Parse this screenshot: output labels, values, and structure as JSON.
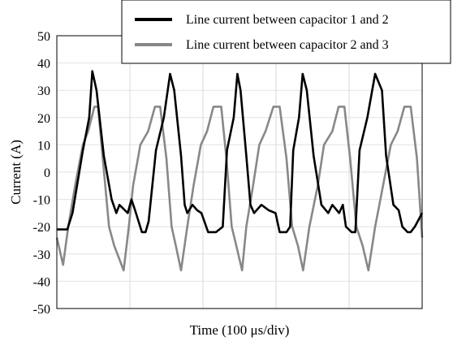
{
  "chart_data": {
    "type": "line",
    "title": "",
    "xlabel": "Time (100 μs/div)",
    "ylabel": "Current (A)",
    "ylim": [
      -50,
      50
    ],
    "yticks": [
      50,
      40,
      30,
      20,
      10,
      0,
      -10,
      -20,
      -30,
      -40,
      -50
    ],
    "xlim": [
      0,
      7
    ],
    "grid": true,
    "legend_position": "top-right",
    "series": [
      {
        "name": "Line current between capacitor 1 and 2",
        "color": "#000000",
        "x": [
          0,
          0.2,
          0.3,
          0.5,
          0.62,
          0.68,
          0.76,
          0.9,
          1.05,
          1.14,
          1.2,
          1.36,
          1.43,
          1.5,
          1.63,
          1.7,
          1.76,
          1.9,
          2.05,
          2.17,
          2.25,
          2.38,
          2.45,
          2.5,
          2.6,
          2.69,
          2.77,
          2.9,
          3.05,
          3.18,
          3.26,
          3.39,
          3.46,
          3.52,
          3.63,
          3.71,
          3.78,
          3.92,
          4.06,
          4.19,
          4.27,
          4.4,
          4.47,
          4.53,
          4.64,
          4.71,
          4.79,
          4.92,
          5.07,
          5.2,
          5.28,
          5.41,
          5.48,
          5.54,
          5.65,
          5.72,
          5.8,
          5.95,
          6.1,
          6.23,
          6.31,
          6.45,
          6.55,
          6.62,
          6.72,
          6.78,
          6.86,
          7
        ],
        "y": [
          -21,
          -21,
          -15,
          8,
          20,
          37,
          30,
          6,
          -10,
          -15,
          -12,
          -15,
          -10,
          -14,
          -22,
          -22,
          -18,
          8,
          20,
          36,
          30,
          6,
          -12,
          -15,
          -12,
          -14,
          -15,
          -22,
          -22,
          -20,
          8,
          20,
          36,
          30,
          6,
          -12,
          -15,
          -12,
          -14,
          -15,
          -22,
          -22,
          -20,
          8,
          20,
          36,
          30,
          6,
          -12,
          -15,
          -12,
          -15,
          -12,
          -20,
          -22,
          -22,
          8,
          20,
          36,
          30,
          6,
          -12,
          -14,
          -20,
          -22,
          -22,
          -20,
          -15
        ]
      },
      {
        "name": "Line current between capacitor 2 and 3",
        "color": "#888888",
        "x": [
          0,
          0.12,
          0.22,
          0.35,
          0.5,
          0.6,
          0.72,
          0.79,
          0.88,
          1.0,
          1.1,
          1.28,
          1.38,
          1.46,
          1.6,
          1.75,
          1.88,
          1.98,
          2.1,
          2.2,
          2.28,
          2.38,
          2.5,
          2.62,
          2.76,
          2.88,
          3.0,
          3.15,
          3.25,
          3.35,
          3.44,
          3.55,
          3.63,
          3.76,
          3.88,
          4.0,
          4.15,
          4.27,
          4.4,
          4.51,
          4.62,
          4.72,
          4.84,
          5.0,
          5.12,
          5.28,
          5.4,
          5.51,
          5.62,
          5.74,
          5.86,
          5.97,
          6.1,
          6.25,
          6.4,
          6.53,
          6.66,
          6.78,
          6.9,
          7
        ],
        "y": [
          -24,
          -34,
          -20,
          -5,
          10,
          15,
          24,
          24,
          5,
          -20,
          -27,
          -36,
          -20,
          -5,
          10,
          15,
          24,
          24,
          5,
          -20,
          -27,
          -36,
          -20,
          -5,
          10,
          15,
          24,
          24,
          5,
          -20,
          -27,
          -36,
          -20,
          -5,
          10,
          15,
          24,
          24,
          5,
          -20,
          -27,
          -36,
          -20,
          -5,
          10,
          15,
          24,
          24,
          5,
          -20,
          -27,
          -36,
          -20,
          -5,
          10,
          15,
          24,
          24,
          5,
          -24
        ]
      }
    ]
  }
}
